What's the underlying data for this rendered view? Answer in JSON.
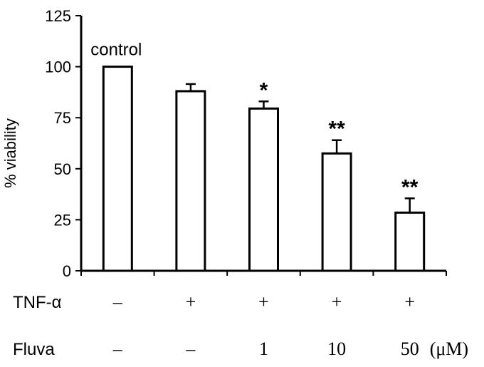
{
  "chart_data": {
    "type": "bar",
    "ylabel": "% viability",
    "ylim": [
      0,
      125
    ],
    "yticks": [
      "0",
      "25",
      "50",
      "75",
      "100",
      "125"
    ],
    "categories": [
      "1",
      "2",
      "3",
      "4",
      "5"
    ],
    "values": [
      100,
      88,
      79.5,
      57.5,
      28.5
    ],
    "errors": [
      0,
      3.5,
      3.5,
      6.5,
      7
    ],
    "significance": [
      "",
      "",
      "*",
      "**",
      "**"
    ],
    "annotation": "control",
    "conditions": [
      {
        "label": "TNF-α",
        "values": [
          "–",
          "+",
          "+",
          "+",
          "+"
        ]
      },
      {
        "label": "Fluva",
        "values": [
          "–",
          "–",
          "1",
          "10",
          "50"
        ],
        "unit": "(μM)"
      }
    ],
    "grid": false
  }
}
